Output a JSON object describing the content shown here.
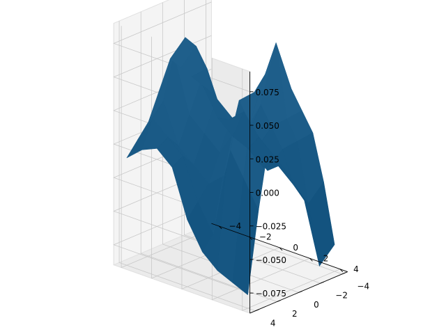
{
  "chart_data": {
    "type": "surface",
    "title": "",
    "xlabel": "",
    "ylabel": "",
    "zlabel": "",
    "surface_color": "#1f5f8b",
    "pane_color": "#f2f2f2",
    "grid": true,
    "x_ticks": [
      "−4",
      "−2",
      "0",
      "2",
      "4"
    ],
    "y_ticks": [
      "−4",
      "−2",
      "0",
      "2",
      "4"
    ],
    "z_ticks": [
      "−0.075",
      "−0.050",
      "−0.025",
      "0.000",
      "0.025",
      "0.050",
      "0.075"
    ],
    "x_tick_values": [
      -4,
      -2,
      0,
      2,
      4
    ],
    "y_tick_values": [
      -4,
      -2,
      0,
      2,
      4
    ],
    "z_tick_values": [
      -0.075,
      -0.05,
      -0.025,
      0.0,
      0.025,
      0.05,
      0.075
    ],
    "xlim": [
      -4.5,
      4.5
    ],
    "ylim": [
      -4.5,
      4.5
    ],
    "zlim": [
      -0.09,
      0.09
    ],
    "grid_x": [
      -4,
      -3,
      -2,
      -1,
      0,
      1,
      2,
      3,
      4
    ],
    "grid_y": [
      -4,
      -3,
      -2,
      -1,
      0,
      1,
      2,
      3,
      4
    ],
    "z": [
      [
        0.01,
        -0.005,
        0.005,
        -0.01,
        -0.02,
        -0.03,
        -0.045,
        -0.09,
        -0.07
      ],
      [
        0.02,
        0.0,
        -0.01,
        -0.015,
        -0.025,
        -0.02,
        -0.03,
        -0.04,
        -0.02
      ],
      [
        0.03,
        0.04,
        0.01,
        0.0,
        -0.01,
        -0.02,
        0.0,
        0.01,
        0.02
      ],
      [
        0.04,
        0.06,
        0.03,
        0.02,
        0.01,
        0.0,
        0.02,
        0.03,
        0.04
      ],
      [
        0.05,
        0.07,
        0.04,
        0.03,
        0.02,
        0.01,
        0.04,
        0.09,
        0.06
      ],
      [
        0.03,
        0.06,
        0.02,
        0.01,
        0.0,
        0.02,
        0.03,
        0.07,
        0.05
      ],
      [
        0.01,
        0.03,
        0.0,
        -0.01,
        -0.02,
        -0.01,
        0.05,
        0.06,
        0.03
      ],
      [
        0.0,
        0.02,
        0.01,
        0.0,
        -0.03,
        -0.05,
        0.02,
        0.0,
        -0.02
      ],
      [
        -0.01,
        0.0,
        0.005,
        -0.005,
        -0.04,
        -0.06,
        -0.07,
        -0.075,
        -0.08
      ]
    ]
  }
}
